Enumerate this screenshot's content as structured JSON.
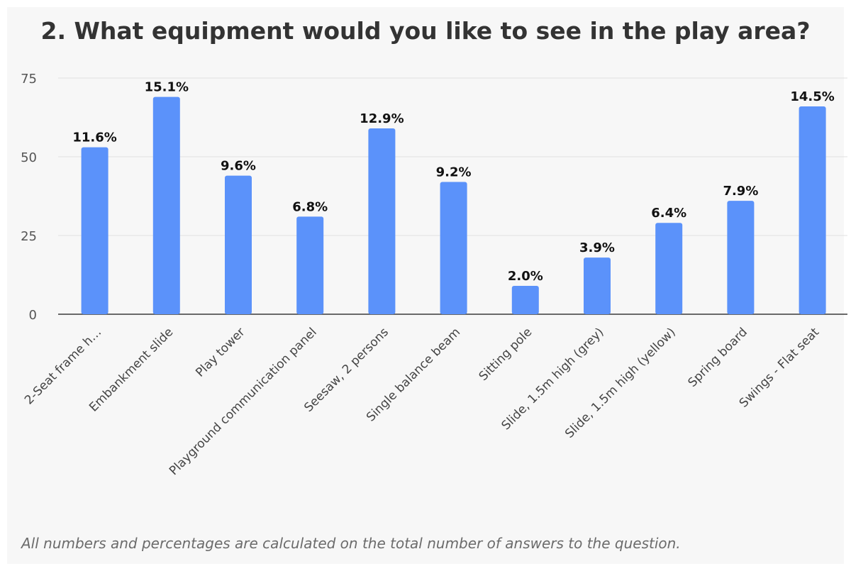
{
  "chart_data": {
    "type": "bar",
    "title": "2. What equipment would you like to see in the play area?",
    "categories": [
      "2-Seat frame h…",
      "Embankment slide",
      "Play tower",
      "Playground communication panel",
      "Seesaw, 2 persons",
      "Single balance beam",
      "Sitting pole",
      "Slide, 1.5m high (grey)",
      "Slide, 1.5m high (yellow)",
      "Spring board",
      "Swings - Flat seat"
    ],
    "values": [
      53,
      69,
      44,
      31,
      59,
      42,
      9,
      18,
      29,
      36,
      66
    ],
    "data_labels": [
      "11.6%",
      "15.1%",
      "9.6%",
      "6.8%",
      "12.9%",
      "9.2%",
      "2.0%",
      "3.9%",
      "6.4%",
      "7.9%",
      "14.5%"
    ],
    "y_ticks": [
      "0",
      "25",
      "50",
      "75"
    ],
    "ylim": [
      0,
      75
    ],
    "xlabel": "",
    "ylabel": "",
    "grid": true,
    "legend": false,
    "bar_color": "#5b92fa",
    "footnote": "All numbers and percentages are calculated on the total number of answers to the question."
  }
}
